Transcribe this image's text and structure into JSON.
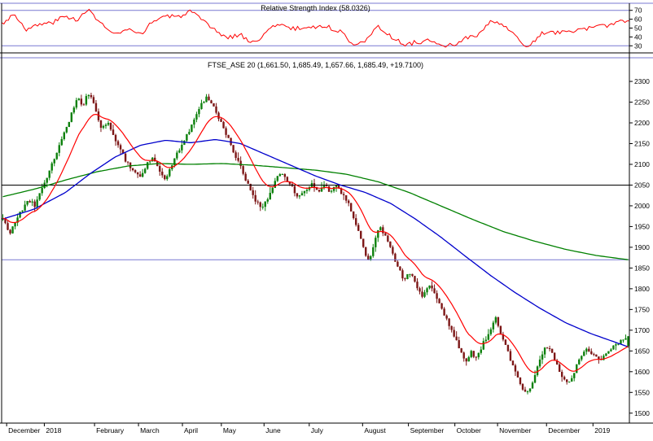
{
  "colors": {
    "background": "#ffffff",
    "frame": "#000000",
    "level_line": "#7878d2",
    "candle_up": "#0c800c",
    "candle_down": "#7c1616",
    "ma_fast": "#ff0000",
    "ma_mid": "#0000cc",
    "ma_slow": "#008000",
    "rsi_line": "#ff0000",
    "text": "#000000"
  },
  "chart_data": [
    {
      "type": "line",
      "title": "Relative Strength Index (58.0326)",
      "last_value": 58.0326,
      "line_color": "#ff0000",
      "ylim": [
        22,
        78
      ],
      "yticks": [
        70,
        60,
        50,
        40,
        30
      ],
      "hlines": [
        {
          "value": 70,
          "color": "#7878d2"
        },
        {
          "value": 30,
          "color": "#7878d2"
        }
      ],
      "grid": false,
      "legend_position": "none",
      "series": [
        {
          "name": "RSI",
          "x": [
            0,
            0.02,
            0.04,
            0.06,
            0.08,
            0.1,
            0.12,
            0.14,
            0.16,
            0.18,
            0.2,
            0.22,
            0.24,
            0.26,
            0.28,
            0.3,
            0.32,
            0.34,
            0.36,
            0.38,
            0.4,
            0.42,
            0.44,
            0.46,
            0.48,
            0.5,
            0.52,
            0.54,
            0.56,
            0.58,
            0.6,
            0.62,
            0.64,
            0.66,
            0.68,
            0.7,
            0.72,
            0.74,
            0.76,
            0.78,
            0.8,
            0.82,
            0.84,
            0.86,
            0.88,
            0.9,
            0.92,
            0.94,
            0.96,
            0.98,
            1.0
          ],
          "values": [
            55,
            66,
            48,
            54,
            56,
            63,
            60,
            70,
            54,
            42,
            48,
            42,
            57,
            64,
            62,
            69,
            58,
            47,
            39,
            43,
            33,
            44,
            56,
            49,
            50,
            52,
            51,
            46,
            32,
            37,
            51,
            41,
            31,
            34,
            36,
            29,
            31,
            39,
            42,
            58,
            53,
            39,
            28,
            44,
            45,
            45,
            49,
            50,
            52,
            57,
            58
          ]
        }
      ]
    },
    {
      "type": "candlestick",
      "title": "FTSE_ASE 20 (1,661.50, 1,685.49, 1,657.66, 1,685.49, +19.7100)",
      "symbol": "FTSE_ASE 20",
      "last": {
        "open": 1661.5,
        "high": 1685.49,
        "low": 1657.66,
        "close": 1685.49,
        "change": "+19.7100"
      },
      "candle_count": 256,
      "ylim": [
        1476,
        2357
      ],
      "yticks": [
        2300,
        2250,
        2200,
        2150,
        2100,
        2050,
        2000,
        1950,
        1900,
        1850,
        1800,
        1750,
        1700,
        1650,
        1600,
        1550,
        1500
      ],
      "hlines": [
        {
          "value": 2050,
          "color": "#000000"
        },
        {
          "value": 1870,
          "color": "#7878d2"
        }
      ],
      "close_anchors": {
        "x": [
          0.0,
          0.006,
          0.012,
          0.02,
          0.03,
          0.04,
          0.052,
          0.062,
          0.072,
          0.082,
          0.092,
          0.102,
          0.112,
          0.12,
          0.128,
          0.136,
          0.142,
          0.15,
          0.158,
          0.168,
          0.178,
          0.188,
          0.198,
          0.208,
          0.218,
          0.228,
          0.238,
          0.248,
          0.258,
          0.268,
          0.278,
          0.288,
          0.298,
          0.308,
          0.318,
          0.326,
          0.334,
          0.344,
          0.354,
          0.364,
          0.374,
          0.384,
          0.394,
          0.404,
          0.414,
          0.424,
          0.434,
          0.444,
          0.454,
          0.464,
          0.474,
          0.484,
          0.494,
          0.504,
          0.514,
          0.524,
          0.534,
          0.544,
          0.554,
          0.562,
          0.57,
          0.578,
          0.586,
          0.594,
          0.602,
          0.612,
          0.622,
          0.632,
          0.642,
          0.652,
          0.662,
          0.672,
          0.682,
          0.692,
          0.702,
          0.712,
          0.722,
          0.732,
          0.74,
          0.748,
          0.756,
          0.764,
          0.772,
          0.78,
          0.788,
          0.796,
          0.804,
          0.812,
          0.82,
          0.828,
          0.836,
          0.845,
          0.855,
          0.865,
          0.875,
          0.885,
          0.895,
          0.905,
          0.915,
          0.925,
          0.935,
          0.945,
          0.955,
          0.965,
          0.975,
          0.985,
          1.0
        ],
        "values": [
          1975,
          1950,
          1935,
          1960,
          1990,
          2015,
          2000,
          2040,
          2075,
          2110,
          2150,
          2190,
          2230,
          2262,
          2240,
          2272,
          2255,
          2225,
          2185,
          2200,
          2165,
          2135,
          2105,
          2088,
          2068,
          2095,
          2118,
          2095,
          2060,
          2090,
          2125,
          2155,
          2180,
          2215,
          2245,
          2262,
          2248,
          2215,
          2185,
          2150,
          2115,
          2080,
          2045,
          2010,
          1995,
          2020,
          2055,
          2080,
          2065,
          2040,
          2020,
          2035,
          2055,
          2035,
          2048,
          2035,
          2045,
          2028,
          2000,
          1965,
          1930,
          1890,
          1868,
          1910,
          1950,
          1925,
          1890,
          1850,
          1820,
          1842,
          1800,
          1782,
          1812,
          1785,
          1752,
          1720,
          1685,
          1648,
          1618,
          1648,
          1632,
          1655,
          1680,
          1705,
          1730,
          1692,
          1660,
          1630,
          1596,
          1568,
          1548,
          1562,
          1612,
          1655,
          1658,
          1622,
          1585,
          1572,
          1605,
          1638,
          1656,
          1640,
          1628,
          1645,
          1658,
          1668,
          1686
        ]
      },
      "overlays": [
        {
          "name": "ma-slow-green",
          "color": "#008000",
          "anchors": {
            "x": [
              0,
              0.05,
              0.1,
              0.15,
              0.2,
              0.25,
              0.3,
              0.35,
              0.4,
              0.45,
              0.5,
              0.55,
              0.6,
              0.65,
              0.7,
              0.75,
              0.8,
              0.85,
              0.9,
              0.95,
              1.0
            ],
            "values": [
              2022,
              2040,
              2062,
              2082,
              2096,
              2102,
              2100,
              2102,
              2098,
              2092,
              2086,
              2076,
              2058,
              2032,
              2000,
              1968,
              1938,
              1915,
              1895,
              1880,
              1870
            ]
          }
        },
        {
          "name": "ma-mid-blue",
          "color": "#0000cc",
          "anchors": {
            "x": [
              0,
              0.05,
              0.1,
              0.14,
              0.18,
              0.22,
              0.26,
              0.3,
              0.34,
              0.38,
              0.42,
              0.46,
              0.5,
              0.54,
              0.58,
              0.62,
              0.66,
              0.7,
              0.74,
              0.78,
              0.82,
              0.86,
              0.9,
              0.94,
              1.0
            ],
            "values": [
              1968,
              1992,
              2032,
              2078,
              2118,
              2146,
              2158,
              2152,
              2160,
              2150,
              2124,
              2098,
              2072,
              2050,
              2032,
              2006,
              1968,
              1925,
              1878,
              1832,
              1790,
              1752,
              1718,
              1692,
              1660
            ]
          }
        },
        {
          "name": "ma-fast-red",
          "color": "#ff0000",
          "method": "ema",
          "alpha": 0.13
        }
      ],
      "x_axis": {
        "labels": [
          "December",
          "2018",
          "February",
          "March",
          "April",
          "May",
          "June",
          "July",
          "August",
          "September",
          "October",
          "November",
          "December",
          "2019"
        ],
        "pos": [
          0.008,
          0.068,
          0.148,
          0.218,
          0.288,
          0.35,
          0.418,
          0.49,
          0.575,
          0.648,
          0.722,
          0.79,
          0.868,
          0.942
        ]
      }
    }
  ]
}
